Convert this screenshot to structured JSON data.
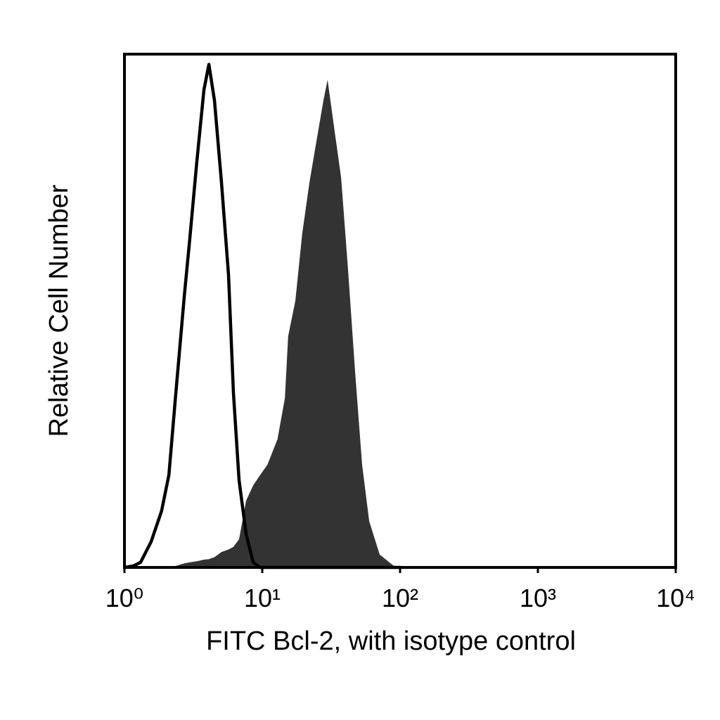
{
  "chart_data": {
    "type": "area",
    "xlabel": "FITC Bcl-2, with isotype control",
    "ylabel": "Relative Cell Number",
    "xscale": "log",
    "xlim": [
      1,
      10000
    ],
    "ylim": [
      0,
      100
    ],
    "xticks": [
      {
        "value": 1,
        "label": "10⁰"
      },
      {
        "value": 10,
        "label": "10¹"
      },
      {
        "value": 100,
        "label": "10²"
      },
      {
        "value": 1000,
        "label": "10³"
      },
      {
        "value": 10000,
        "label": "10⁴"
      }
    ],
    "x": [
      1,
      1.165,
      1.31,
      1.56,
      1.86,
      2.1,
      2.36,
      2.72,
      2.98,
      3.35,
      3.77,
      4.1,
      4.5,
      5.06,
      5.69,
      6.18,
      6.79,
      7.63,
      8.59,
      9.65,
      10.9,
      12.9,
      14.6,
      15.4,
      17.4,
      19.5,
      22,
      24.7,
      27.8,
      29.8,
      33.1,
      37.3,
      41.9,
      47.2,
      53,
      59.7,
      71.1,
      90,
      101
    ],
    "series": [
      {
        "color": "#333333",
        "fill": true,
        "values": [
          0,
          0,
          0,
          0,
          0,
          0,
          0.3,
          0.8,
          1,
          1.2,
          1.5,
          1.6,
          2,
          3,
          3.5,
          4,
          5.5,
          13,
          16,
          18,
          20,
          25,
          33,
          45,
          52,
          65,
          75,
          83,
          91,
          95,
          86,
          76,
          58,
          38,
          20,
          9,
          2.5,
          0.3,
          0
        ]
      },
      {
        "color": "#000000",
        "fill": false,
        "values": [
          0,
          0.3,
          1,
          5,
          11,
          18,
          34,
          53,
          64,
          79,
          93,
          98,
          91,
          75,
          57,
          34,
          17,
          6.5,
          1,
          0,
          0,
          0,
          0,
          0,
          0,
          0,
          0,
          0,
          0,
          0,
          0,
          0,
          0,
          0,
          0,
          0,
          0,
          0,
          0
        ]
      }
    ]
  }
}
